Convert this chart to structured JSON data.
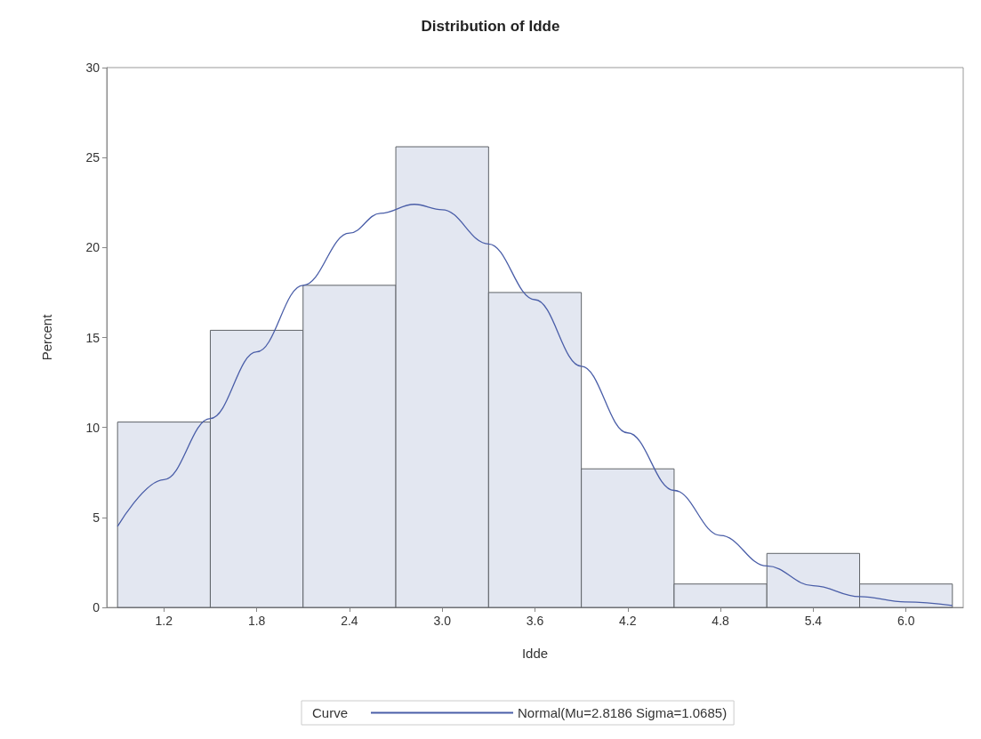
{
  "chart_data": {
    "type": "histogram",
    "title": "Distribution of Idde",
    "xlabel": "Idde",
    "ylabel": "Percent",
    "legend_title": "Curve",
    "bins": [
      0.9,
      1.5,
      2.1,
      2.7,
      3.3,
      3.9,
      4.5,
      5.1,
      5.7,
      6.3
    ],
    "values": [
      10.3,
      15.4,
      17.9,
      25.6,
      17.5,
      7.7,
      1.3,
      3.0,
      1.3
    ],
    "color": "#e3e7f1",
    "series": [
      {
        "type": "line",
        "name": "Normal(Mu=2.8186 Sigma=1.0685)",
        "color": "#4a5ea8",
        "x": [
          0.9,
          1.2,
          1.5,
          1.8,
          2.1,
          2.4,
          2.6,
          2.82,
          3.0,
          3.3,
          3.6,
          3.9,
          4.2,
          4.5,
          4.8,
          5.1,
          5.4,
          5.7,
          6.0,
          6.3
        ],
        "values": [
          4.5,
          7.1,
          10.5,
          14.2,
          17.9,
          20.8,
          21.9,
          22.4,
          22.1,
          20.2,
          17.1,
          13.4,
          9.7,
          6.5,
          4.0,
          2.3,
          1.2,
          0.6,
          0.3,
          0.1
        ]
      }
    ],
    "xlim": [
      0.83,
      6.37
    ],
    "xticks": [
      {
        "value": 1.2,
        "label": "1.2"
      },
      {
        "value": 1.8,
        "label": "1.8"
      },
      {
        "value": 2.4,
        "label": "2.4"
      },
      {
        "value": 3,
        "label": "3.0"
      },
      {
        "value": 3.6,
        "label": "3.6"
      },
      {
        "value": 4.2,
        "label": "4.2"
      },
      {
        "value": 4.8,
        "label": "4.8"
      },
      {
        "value": 5.4,
        "label": "5.4"
      },
      {
        "value": 6,
        "label": "6.0"
      }
    ],
    "ylim": [
      0,
      30
    ],
    "yticks": [
      0,
      5,
      10,
      15,
      20,
      25,
      30
    ],
    "legend": "bottom",
    "marker": "none"
  }
}
